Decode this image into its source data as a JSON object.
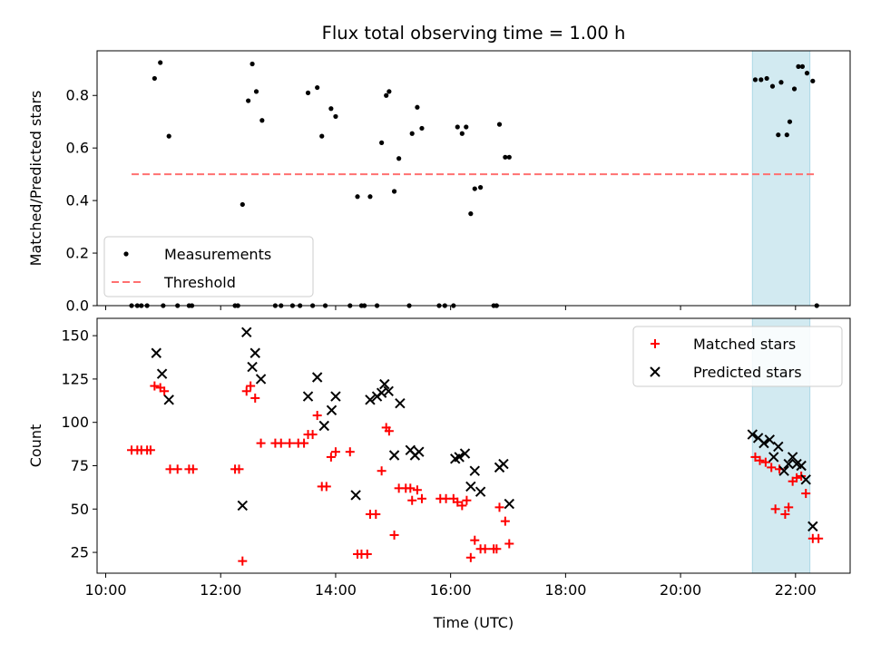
{
  "chart_data": {
    "title": "Flux total observing time = 1.00 h",
    "xlabel": "Time (UTC)",
    "x_ticks": [
      "10:00",
      "12:00",
      "14:00",
      "16:00",
      "18:00",
      "20:00",
      "22:00"
    ],
    "x_tick_hours": [
      10,
      12,
      14,
      16,
      18,
      20,
      22
    ],
    "xlim_hours": [
      9.85,
      22.95
    ],
    "highlight_span_hours": [
      21.25,
      22.25
    ],
    "highlight_color": "#add8e6",
    "panels": [
      {
        "type": "scatter",
        "ylabel": "Matched/Predicted stars",
        "ylim": [
          0,
          0.97
        ],
        "y_ticks": [
          0.0,
          0.2,
          0.4,
          0.6,
          0.8
        ],
        "y_tick_labels": [
          "0.0",
          "0.2",
          "0.4",
          "0.6",
          "0.8"
        ],
        "legend_position": "lower-left",
        "series": [
          {
            "name": "Measurements",
            "color": "#000000",
            "marker": "dot",
            "points": [
              [
                10.45,
                0
              ],
              [
                10.55,
                0
              ],
              [
                10.62,
                0
              ],
              [
                10.72,
                0
              ],
              [
                10.85,
                0.865
              ],
              [
                10.95,
                0.925
              ],
              [
                11.1,
                0.645
              ],
              [
                11.0,
                0
              ],
              [
                11.25,
                0
              ],
              [
                11.45,
                0
              ],
              [
                11.5,
                0
              ],
              [
                12.25,
                0
              ],
              [
                12.3,
                0
              ],
              [
                12.38,
                0.385
              ],
              [
                12.48,
                0.78
              ],
              [
                12.55,
                0.92
              ],
              [
                12.62,
                0.815
              ],
              [
                12.72,
                0.705
              ],
              [
                12.95,
                0
              ],
              [
                13.05,
                0
              ],
              [
                13.25,
                0
              ],
              [
                13.38,
                0
              ],
              [
                13.52,
                0.81
              ],
              [
                13.6,
                0
              ],
              [
                13.68,
                0.83
              ],
              [
                13.76,
                0.645
              ],
              [
                13.82,
                0
              ],
              [
                13.92,
                0.75
              ],
              [
                14.0,
                0.72
              ],
              [
                14.25,
                0
              ],
              [
                14.38,
                0.415
              ],
              [
                14.45,
                0
              ],
              [
                14.5,
                0
              ],
              [
                14.6,
                0.415
              ],
              [
                14.72,
                0
              ],
              [
                14.8,
                0.62
              ],
              [
                14.88,
                0.8
              ],
              [
                14.93,
                0.815
              ],
              [
                15.02,
                0.435
              ],
              [
                15.1,
                0.56
              ],
              [
                15.28,
                0
              ],
              [
                15.33,
                0.655
              ],
              [
                15.42,
                0.755
              ],
              [
                15.5,
                0.675
              ],
              [
                15.8,
                0
              ],
              [
                15.9,
                0
              ],
              [
                16.05,
                0
              ],
              [
                16.12,
                0.68
              ],
              [
                16.2,
                0.655
              ],
              [
                16.27,
                0.68
              ],
              [
                16.35,
                0.35
              ],
              [
                16.42,
                0.445
              ],
              [
                16.52,
                0.45
              ],
              [
                16.75,
                0
              ],
              [
                16.8,
                0
              ],
              [
                16.85,
                0.69
              ],
              [
                16.95,
                0.565
              ],
              [
                17.02,
                0.565
              ],
              [
                21.3,
                0.86
              ],
              [
                21.4,
                0.86
              ],
              [
                21.5,
                0.865
              ],
              [
                21.6,
                0.835
              ],
              [
                21.7,
                0.65
              ],
              [
                21.75,
                0.85
              ],
              [
                21.85,
                0.65
              ],
              [
                21.9,
                0.7
              ],
              [
                21.98,
                0.825
              ],
              [
                22.05,
                0.91
              ],
              [
                22.12,
                0.91
              ],
              [
                22.2,
                0.885
              ],
              [
                22.3,
                0.855
              ],
              [
                22.37,
                0
              ]
            ]
          },
          {
            "name": "Threshold",
            "color": "#ff7070",
            "style": "dashed",
            "line": [
              [
                10.45,
                0.5
              ],
              [
                22.37,
                0.5
              ]
            ]
          }
        ]
      },
      {
        "type": "scatter",
        "ylabel": "Count",
        "ylim": [
          13,
          160
        ],
        "y_ticks": [
          25,
          50,
          75,
          100,
          125,
          150
        ],
        "y_tick_labels": [
          "25",
          "50",
          "75",
          "100",
          "125",
          "150"
        ],
        "legend_position": "upper-right",
        "series": [
          {
            "name": "Matched stars",
            "color": "#ff0000",
            "marker": "plus",
            "points": [
              [
                10.45,
                84
              ],
              [
                10.55,
                84
              ],
              [
                10.62,
                84
              ],
              [
                10.72,
                84
              ],
              [
                10.78,
                84
              ],
              [
                10.85,
                121
              ],
              [
                10.95,
                120
              ],
              [
                11.02,
                118
              ],
              [
                11.12,
                73
              ],
              [
                11.25,
                73
              ],
              [
                11.45,
                73
              ],
              [
                11.52,
                73
              ],
              [
                12.25,
                73
              ],
              [
                12.32,
                73
              ],
              [
                12.38,
                20
              ],
              [
                12.45,
                118
              ],
              [
                12.52,
                121
              ],
              [
                12.6,
                114
              ],
              [
                12.7,
                88
              ],
              [
                12.95,
                88
              ],
              [
                13.05,
                88
              ],
              [
                13.2,
                88
              ],
              [
                13.35,
                88
              ],
              [
                13.45,
                88
              ],
              [
                13.52,
                93
              ],
              [
                13.6,
                93
              ],
              [
                13.68,
                104
              ],
              [
                13.76,
                63
              ],
              [
                13.84,
                63
              ],
              [
                13.92,
                80
              ],
              [
                14.0,
                83
              ],
              [
                14.25,
                83
              ],
              [
                14.38,
                24
              ],
              [
                14.45,
                24
              ],
              [
                14.55,
                24
              ],
              [
                14.6,
                47
              ],
              [
                14.7,
                47
              ],
              [
                14.8,
                72
              ],
              [
                14.88,
                97
              ],
              [
                14.93,
                95
              ],
              [
                15.02,
                35
              ],
              [
                15.1,
                62
              ],
              [
                15.22,
                62
              ],
              [
                15.3,
                62
              ],
              [
                15.33,
                55
              ],
              [
                15.42,
                61
              ],
              [
                15.5,
                56
              ],
              [
                15.82,
                56
              ],
              [
                15.92,
                56
              ],
              [
                16.05,
                56
              ],
              [
                16.12,
                54
              ],
              [
                16.2,
                52
              ],
              [
                16.28,
                55
              ],
              [
                16.35,
                22
              ],
              [
                16.42,
                32
              ],
              [
                16.52,
                27
              ],
              [
                16.6,
                27
              ],
              [
                16.75,
                27
              ],
              [
                16.8,
                27
              ],
              [
                16.85,
                51
              ],
              [
                16.95,
                43
              ],
              [
                17.02,
                30
              ],
              [
                21.3,
                80
              ],
              [
                21.38,
                78
              ],
              [
                21.48,
                77
              ],
              [
                21.58,
                74
              ],
              [
                21.65,
                50
              ],
              [
                21.72,
                73
              ],
              [
                21.82,
                47
              ],
              [
                21.88,
                51
              ],
              [
                21.95,
                66
              ],
              [
                22.02,
                68
              ],
              [
                22.1,
                69
              ],
              [
                22.18,
                59
              ],
              [
                22.3,
                33
              ],
              [
                22.4,
                33
              ]
            ]
          },
          {
            "name": "Predicted stars",
            "color": "#000000",
            "marker": "cross",
            "points": [
              [
                10.88,
                140
              ],
              [
                10.98,
                128
              ],
              [
                11.1,
                113
              ],
              [
                12.38,
                52
              ],
              [
                12.45,
                152
              ],
              [
                12.55,
                132
              ],
              [
                12.6,
                140
              ],
              [
                12.7,
                125
              ],
              [
                13.52,
                115
              ],
              [
                13.68,
                126
              ],
              [
                13.8,
                98
              ],
              [
                13.93,
                107
              ],
              [
                14.0,
                115
              ],
              [
                14.35,
                58
              ],
              [
                14.6,
                113
              ],
              [
                14.72,
                115
              ],
              [
                14.8,
                117
              ],
              [
                14.85,
                122
              ],
              [
                14.92,
                118
              ],
              [
                15.02,
                81
              ],
              [
                15.12,
                111
              ],
              [
                15.3,
                84
              ],
              [
                15.38,
                81
              ],
              [
                15.45,
                83
              ],
              [
                16.08,
                79
              ],
              [
                16.15,
                80
              ],
              [
                16.25,
                82
              ],
              [
                16.35,
                63
              ],
              [
                16.42,
                72
              ],
              [
                16.52,
                60
              ],
              [
                16.85,
                74
              ],
              [
                16.92,
                76
              ],
              [
                17.02,
                53
              ],
              [
                21.25,
                93
              ],
              [
                21.35,
                91
              ],
              [
                21.45,
                88
              ],
              [
                21.55,
                90
              ],
              [
                21.62,
                80
              ],
              [
                21.7,
                86
              ],
              [
                21.8,
                72
              ],
              [
                21.88,
                76
              ],
              [
                21.95,
                80
              ],
              [
                22.02,
                76
              ],
              [
                22.1,
                75
              ],
              [
                22.18,
                67
              ],
              [
                22.3,
                40
              ]
            ]
          }
        ]
      }
    ]
  }
}
